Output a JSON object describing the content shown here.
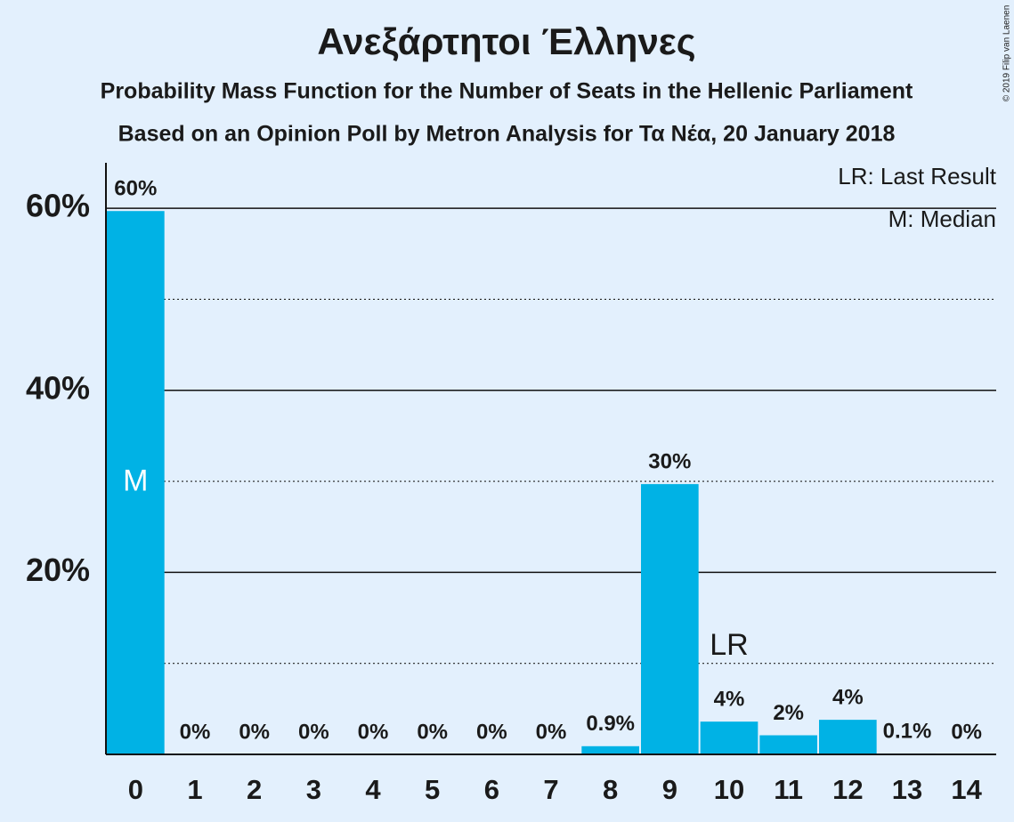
{
  "chart_data": {
    "type": "bar",
    "title": "Ανεξάρτητοι Έλληνες",
    "subtitle": "Probability Mass Function for the Number of Seats in the Hellenic Parliament",
    "subtitle2": "Based on an Opinion Poll by Metron Analysis for Τα Νέα, 20 January 2018",
    "copyright": "© 2019 Filip van Laenen",
    "legend": [
      "LR: Last Result",
      "M: Median"
    ],
    "legend_position": "upper right",
    "x": [
      0,
      1,
      2,
      3,
      4,
      5,
      6,
      7,
      8,
      9,
      10,
      11,
      12,
      13,
      14
    ],
    "xticks": [
      0,
      1,
      2,
      3,
      4,
      5,
      6,
      7,
      8,
      9,
      10,
      11,
      12,
      13,
      14
    ],
    "values": [
      59.7,
      0,
      0,
      0,
      0,
      0,
      0,
      0,
      0.9,
      29.7,
      3.6,
      2.1,
      3.8,
      0.1,
      0
    ],
    "value_labels": [
      "60%",
      "0%",
      "0%",
      "0%",
      "0%",
      "0%",
      "0%",
      "0%",
      "0.9%",
      "30%",
      "4%",
      "2%",
      "4%",
      "0.1%",
      "0%"
    ],
    "color": "#00b2e5",
    "ylim": [
      0,
      65
    ],
    "yticks": [
      {
        "value": 20,
        "label": "20%"
      },
      {
        "value": 40,
        "label": "40%"
      },
      {
        "value": 60,
        "label": "60%"
      }
    ],
    "minor_yticks": [
      10,
      30,
      50
    ],
    "grid": true,
    "annotations": [
      {
        "text": "M",
        "x": 0
      },
      {
        "text": "LR",
        "x": 10
      }
    ]
  }
}
